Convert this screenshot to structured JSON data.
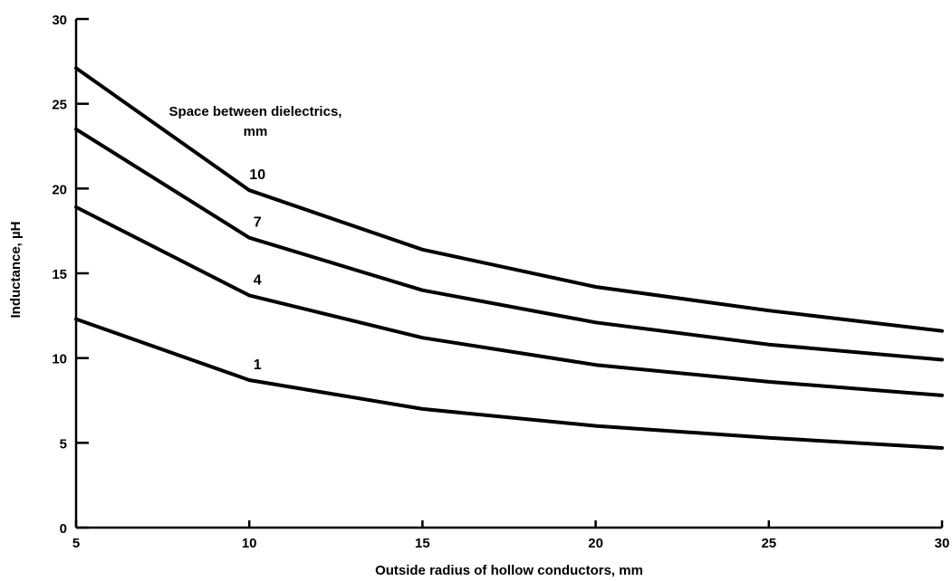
{
  "chart_data": {
    "type": "line",
    "xlabel": "Outside radius of hollow conductors, mm",
    "ylabel": "Inductance, µH",
    "xlim": [
      5,
      30
    ],
    "ylim": [
      0,
      30
    ],
    "x_ticks": [
      "5",
      "10",
      "15",
      "20",
      "25",
      "30"
    ],
    "y_ticks": [
      "0",
      "5",
      "10",
      "15",
      "20",
      "25",
      "30"
    ],
    "grid": false,
    "legend_title_lines": [
      "Space between dielectrics,",
      "mm"
    ],
    "x": [
      5,
      10,
      15,
      20,
      25,
      30
    ],
    "series": [
      {
        "name": "10",
        "values": [
          27.1,
          19.9,
          16.4,
          14.2,
          12.8,
          11.6
        ]
      },
      {
        "name": "7",
        "values": [
          23.5,
          17.1,
          14.0,
          12.1,
          10.8,
          9.9
        ]
      },
      {
        "name": "4",
        "values": [
          18.9,
          13.7,
          11.2,
          9.6,
          8.6,
          7.8
        ]
      },
      {
        "name": "1",
        "values": [
          12.3,
          8.7,
          7.0,
          6.0,
          5.3,
          4.7
        ]
      }
    ]
  }
}
